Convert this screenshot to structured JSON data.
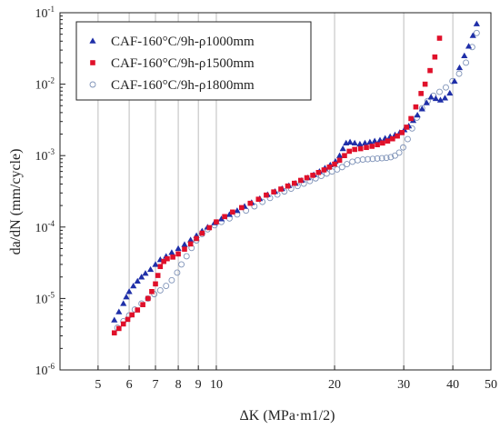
{
  "chart_data": {
    "type": "scatter",
    "title": "",
    "xlabel": "ΔK (MPa·m1/2)",
    "ylabel": "da/dN (mm/cycle)",
    "xscale": "log",
    "yscale": "log",
    "xlim": [
      4,
      50
    ],
    "ylim": [
      1e-06,
      0.1
    ],
    "grid": {
      "x": true,
      "y": false
    },
    "legend": {
      "position": "top-left"
    },
    "x_ticks": [
      {
        "value": 5,
        "label": "5"
      },
      {
        "value": 6,
        "label": "6"
      },
      {
        "value": 7,
        "label": "7"
      },
      {
        "value": 8,
        "label": "8"
      },
      {
        "value": 9,
        "label": "9"
      },
      {
        "value": 10,
        "label": "10"
      },
      {
        "value": 20,
        "label": "20"
      },
      {
        "value": 30,
        "label": "30"
      },
      {
        "value": 40,
        "label": "40"
      },
      {
        "value": 50,
        "label": "50"
      }
    ],
    "y_ticks": [
      {
        "value": 1e-06,
        "base": "10",
        "exp": "-6"
      },
      {
        "value": 1e-05,
        "base": "10",
        "exp": "-5"
      },
      {
        "value": 0.0001,
        "base": "10",
        "exp": "-4"
      },
      {
        "value": 0.001,
        "base": "10",
        "exp": "-3"
      },
      {
        "value": 0.01,
        "base": "10",
        "exp": "-2"
      },
      {
        "value": 0.1,
        "base": "10",
        "exp": "-1"
      }
    ],
    "series": [
      {
        "name": "CAF-160°C/9h-ρ1000mm",
        "marker": "triangle",
        "color": "#1f2fa8",
        "points": [
          [
            5.5,
            5e-06
          ],
          [
            5.65,
            6.5e-06
          ],
          [
            5.8,
            8.5e-06
          ],
          [
            5.9,
            1.05e-05
          ],
          [
            6.0,
            1.25e-05
          ],
          [
            6.15,
            1.5e-05
          ],
          [
            6.3,
            1.75e-05
          ],
          [
            6.45,
            2e-05
          ],
          [
            6.6,
            2.25e-05
          ],
          [
            6.8,
            2.55e-05
          ],
          [
            7.0,
            3e-05
          ],
          [
            7.2,
            3.5e-05
          ],
          [
            7.45,
            3.9e-05
          ],
          [
            7.7,
            4.4e-05
          ],
          [
            8.0,
            5e-05
          ],
          [
            8.3,
            5.7e-05
          ],
          [
            8.6,
            6.6e-05
          ],
          [
            8.9,
            7.6e-05
          ],
          [
            9.2,
            8.8e-05
          ],
          [
            9.5,
            0.0001
          ],
          [
            9.9,
            0.000115
          ],
          [
            10.3,
            0.00013
          ],
          [
            10.8,
            0.00015
          ],
          [
            11.3,
            0.00017
          ],
          [
            11.8,
            0.000195
          ],
          [
            12.3,
            0.00022
          ],
          [
            12.9,
            0.00025
          ],
          [
            13.5,
            0.000285
          ],
          [
            14.1,
            0.000315
          ],
          [
            14.7,
            0.000345
          ],
          [
            15.3,
            0.00038
          ],
          [
            15.9,
            0.00041
          ],
          [
            16.5,
            0.00045
          ],
          [
            17.1,
            0.00049
          ],
          [
            17.7,
            0.00054
          ],
          [
            18.3,
            0.0006
          ],
          [
            18.9,
            0.00067
          ],
          [
            19.5,
            0.00074
          ],
          [
            20.1,
            0.00083
          ],
          [
            20.6,
            0.001
          ],
          [
            21.0,
            0.00125
          ],
          [
            21.4,
            0.0015
          ],
          [
            21.9,
            0.00155
          ],
          [
            22.5,
            0.0015
          ],
          [
            23.2,
            0.00145
          ],
          [
            23.9,
            0.0015
          ],
          [
            24.6,
            0.00155
          ],
          [
            25.3,
            0.0016
          ],
          [
            26.1,
            0.00165
          ],
          [
            26.9,
            0.00175
          ],
          [
            27.7,
            0.00185
          ],
          [
            28.5,
            0.00195
          ],
          [
            29.3,
            0.0021
          ],
          [
            30.1,
            0.0023
          ],
          [
            30.9,
            0.0026
          ],
          [
            31.7,
            0.0031
          ],
          [
            32.5,
            0.0037
          ],
          [
            33.4,
            0.0045
          ],
          [
            34.3,
            0.0055
          ],
          [
            35.2,
            0.0066
          ],
          [
            36.2,
            0.0063
          ],
          [
            37.2,
            0.006
          ],
          [
            38.2,
            0.0064
          ],
          [
            39.3,
            0.0075
          ],
          [
            40.4,
            0.011
          ],
          [
            41.6,
            0.017
          ],
          [
            42.8,
            0.025
          ],
          [
            43.9,
            0.034
          ],
          [
            45.0,
            0.048
          ],
          [
            46.0,
            0.07
          ]
        ]
      },
      {
        "name": "CAF-160°C/9h-ρ1500mm",
        "marker": "square",
        "color": "#e0102a",
        "points": [
          [
            5.5,
            3.3e-06
          ],
          [
            5.65,
            3.8e-06
          ],
          [
            5.8,
            4.4e-06
          ],
          [
            5.95,
            5.1e-06
          ],
          [
            6.1,
            5.9e-06
          ],
          [
            6.3,
            6.9e-06
          ],
          [
            6.5,
            8.2e-06
          ],
          [
            6.7,
            1e-05
          ],
          [
            6.85,
            1.25e-05
          ],
          [
            7.0,
            1.6e-05
          ],
          [
            7.1,
            2.1e-05
          ],
          [
            7.2,
            2.8e-05
          ],
          [
            7.35,
            3.3e-05
          ],
          [
            7.5,
            3.6e-05
          ],
          [
            7.75,
            3.8e-05
          ],
          [
            8.0,
            4.2e-05
          ],
          [
            8.3,
            4.9e-05
          ],
          [
            8.6,
            5.8e-05
          ],
          [
            8.9,
            6.9e-05
          ],
          [
            9.2,
            8.2e-05
          ],
          [
            9.6,
            9.8e-05
          ],
          [
            10.0,
            0.000118
          ],
          [
            10.5,
            0.00014
          ],
          [
            11.0,
            0.000162
          ],
          [
            11.6,
            0.000187
          ],
          [
            12.2,
            0.000215
          ],
          [
            12.8,
            0.000245
          ],
          [
            13.4,
            0.00028
          ],
          [
            14.0,
            0.00031
          ],
          [
            14.6,
            0.00034
          ],
          [
            15.2,
            0.000375
          ],
          [
            15.8,
            0.00041
          ],
          [
            16.4,
            0.00045
          ],
          [
            17.0,
            0.00049
          ],
          [
            17.6,
            0.00053
          ],
          [
            18.2,
            0.00058
          ],
          [
            18.8,
            0.00063
          ],
          [
            19.4,
            0.00069
          ],
          [
            20.0,
            0.00076
          ],
          [
            20.6,
            0.00086
          ],
          [
            21.2,
            0.001
          ],
          [
            21.8,
            0.00115
          ],
          [
            22.5,
            0.00122
          ],
          [
            23.3,
            0.00125
          ],
          [
            24.1,
            0.0013
          ],
          [
            24.9,
            0.00135
          ],
          [
            25.7,
            0.00142
          ],
          [
            26.5,
            0.0015
          ],
          [
            27.3,
            0.0016
          ],
          [
            28.1,
            0.00172
          ],
          [
            28.9,
            0.00188
          ],
          [
            29.7,
            0.0021
          ],
          [
            30.5,
            0.0025
          ],
          [
            31.3,
            0.0033
          ],
          [
            32.2,
            0.0048
          ],
          [
            33.2,
            0.0074
          ],
          [
            34.0,
            0.01
          ],
          [
            35.0,
            0.0155
          ],
          [
            36.0,
            0.024
          ],
          [
            37.0,
            0.044
          ]
        ]
      },
      {
        "name": "CAF-160°C/9h-ρ1800mm",
        "marker": "circle-open",
        "color": "#7f93b8",
        "points": [
          [
            5.6,
            3.9e-06
          ],
          [
            5.8,
            4.8e-06
          ],
          [
            6.0,
            5.8e-06
          ],
          [
            6.2,
            7e-06
          ],
          [
            6.45,
            8.5e-06
          ],
          [
            6.7,
            1e-05
          ],
          [
            6.95,
            1.15e-05
          ],
          [
            7.2,
            1.3e-05
          ],
          [
            7.45,
            1.5e-05
          ],
          [
            7.7,
            1.8e-05
          ],
          [
            7.95,
            2.3e-05
          ],
          [
            8.15,
            3e-05
          ],
          [
            8.4,
            3.9e-05
          ],
          [
            8.65,
            5.1e-05
          ],
          [
            8.9,
            6.5e-05
          ],
          [
            9.2,
            8e-05
          ],
          [
            9.5,
            9.3e-05
          ],
          [
            9.9,
            0.000106
          ],
          [
            10.3,
            0.000118
          ],
          [
            10.8,
            0.000132
          ],
          [
            11.3,
            0.00015
          ],
          [
            11.9,
            0.00017
          ],
          [
            12.5,
            0.000195
          ],
          [
            13.1,
            0.000225
          ],
          [
            13.7,
            0.000255
          ],
          [
            14.3,
            0.000285
          ],
          [
            14.9,
            0.000315
          ],
          [
            15.5,
            0.000345
          ],
          [
            16.1,
            0.000375
          ],
          [
            16.7,
            0.000405
          ],
          [
            17.3,
            0.00044
          ],
          [
            17.9,
            0.00048
          ],
          [
            18.5,
            0.00052
          ],
          [
            19.1,
            0.00056
          ],
          [
            19.7,
            0.0006
          ],
          [
            20.3,
            0.00064
          ],
          [
            20.9,
            0.00069
          ],
          [
            21.5,
            0.00076
          ],
          [
            22.2,
            0.00082
          ],
          [
            22.9,
            0.00086
          ],
          [
            23.6,
            0.00088
          ],
          [
            24.3,
            0.00089
          ],
          [
            25.0,
            0.0009
          ],
          [
            25.7,
            0.00091
          ],
          [
            26.4,
            0.00092
          ],
          [
            27.1,
            0.00093
          ],
          [
            27.8,
            0.00095
          ],
          [
            28.5,
            0.001
          ],
          [
            29.2,
            0.0011
          ],
          [
            29.9,
            0.0013
          ],
          [
            30.7,
            0.0017
          ],
          [
            31.5,
            0.0024
          ],
          [
            32.4,
            0.0034
          ],
          [
            33.4,
            0.0046
          ],
          [
            34.5,
            0.0058
          ],
          [
            35.7,
            0.0069
          ],
          [
            37.0,
            0.0078
          ],
          [
            38.4,
            0.009
          ],
          [
            39.9,
            0.011
          ],
          [
            41.5,
            0.014
          ],
          [
            43.2,
            0.02
          ],
          [
            44.8,
            0.033
          ],
          [
            46.0,
            0.052
          ]
        ]
      }
    ]
  }
}
